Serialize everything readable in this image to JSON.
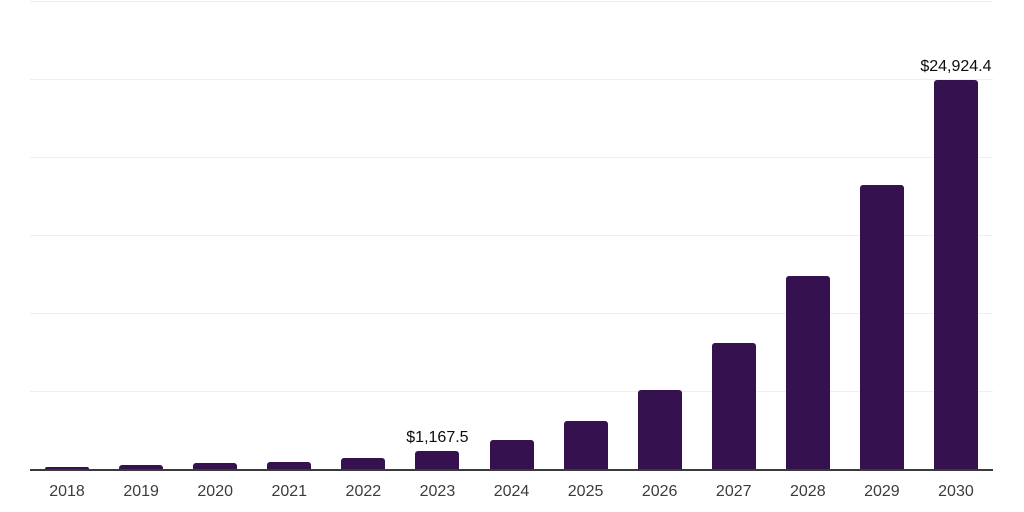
{
  "chart": {
    "background_color": "#ffffff",
    "bar_color": "#36114f",
    "grid_color": "#efefef",
    "axis_color": "#3a3a3a",
    "data_label_color": "#0d0d0d",
    "tick_label_color": "#3c3c3c"
  },
  "chart_data": {
    "type": "bar",
    "title": "",
    "xlabel": "",
    "ylabel": "",
    "categories": [
      "2018",
      "2019",
      "2020",
      "2021",
      "2022",
      "2023",
      "2024",
      "2025",
      "2026",
      "2027",
      "2028",
      "2029",
      "2030"
    ],
    "values": [
      150,
      235,
      365,
      430,
      685,
      1167.5,
      1835,
      3070,
      5055,
      8080,
      12395,
      18195,
      24924.4
    ],
    "data_labels": [
      null,
      null,
      null,
      null,
      null,
      "$1,167.5",
      null,
      null,
      null,
      null,
      null,
      null,
      "$24,924.4"
    ],
    "ylim": [
      0,
      30000
    ],
    "gridline_values": [
      5000,
      10000,
      15000,
      20000,
      25000,
      30000
    ],
    "grid": "horizontal-only",
    "legend_position": "none",
    "y_axis_tick_labels": "none"
  }
}
